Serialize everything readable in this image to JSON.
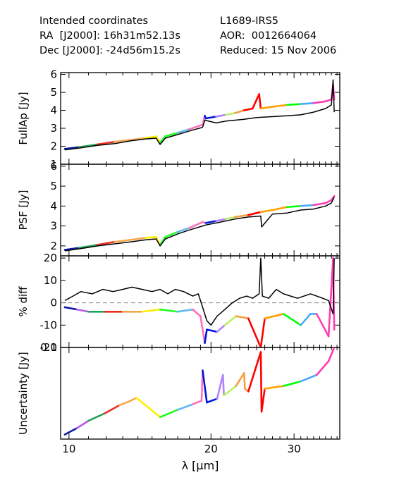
{
  "header": {
    "left": [
      "Intended coordinates",
      "RA  [J2000]: 16h31m52.13s",
      "Dec [J2000]: -24d56m15.2s"
    ],
    "right": [
      "L1689-IRS5",
      "AOR:  0012664064",
      "Reduced: 15 Nov 2006"
    ]
  },
  "chart_data": {
    "type": "line",
    "x_axis": {
      "label": "λ [μm]",
      "scale": "log",
      "range": [
        9.6,
        37.5
      ],
      "ticks": [
        10,
        20,
        30
      ],
      "tick_labels": [
        "10",
        "20",
        "30"
      ]
    },
    "segment_colors": [
      "#0d1aa6",
      "#b25ce8",
      "#22a35a",
      "#e83020",
      "#f5a74d",
      "#ffee00",
      "#20ff20",
      "#60b8f0",
      "#ff70b8",
      "#0018e0",
      "#b080ff",
      "#b8f060",
      "#f59e3f",
      "#ff0000",
      "#ffa000",
      "#00ff00",
      "#4aa8ff",
      "#ff3cb4"
    ],
    "segment_breaks": [
      9.8,
      10.4,
      11.0,
      11.9,
      13.0,
      14.3,
      15.6,
      17.0,
      18.3,
      19.4,
      20.6,
      21.4,
      22.6,
      24.0,
      26.0,
      28.5,
      31.0,
      33.5,
      36.5
    ],
    "panels": [
      {
        "ylabel": "FullAp [Jy]",
        "ylim": [
          1,
          6.1
        ],
        "ytick_values": [
          1,
          2,
          3,
          4,
          5,
          6
        ],
        "ytick_labels": [
          "1",
          "2",
          "3",
          "4",
          "5",
          "6"
        ],
        "zero_line": false,
        "series": [
          {
            "name": "",
            "style": "colored",
            "x": [
              9.8,
              10.5,
              11.5,
              12.5,
              13.5,
              14.5,
              15.3,
              15.6,
              16.0,
              17.0,
              18.0,
              19.2,
              19.4,
              19.5,
              20.5,
              21.5,
              22.5,
              23.5,
              24.5,
              25.3,
              25.5,
              27.0,
              29.0,
              31.0,
              33.0,
              35.0,
              36.0,
              36.3,
              36.5
            ],
            "y": [
              1.85,
              1.95,
              2.1,
              2.25,
              2.35,
              2.45,
              2.55,
              2.2,
              2.55,
              2.75,
              2.95,
              3.2,
              3.7,
              3.55,
              3.65,
              3.75,
              3.85,
              4.0,
              4.1,
              4.9,
              4.1,
              4.2,
              4.3,
              4.35,
              4.4,
              4.5,
              4.6,
              5.4,
              4.6
            ]
          },
          {
            "name": "",
            "style": "black",
            "x": [
              9.8,
              10.5,
              11.5,
              12.5,
              13.5,
              14.5,
              15.3,
              15.6,
              16.0,
              17.0,
              18.0,
              19.2,
              19.4,
              20.5,
              21.5,
              22.5,
              23.5,
              25.0,
              27.0,
              29.0,
              31.0,
              33.0,
              35.0,
              36.0,
              36.3,
              36.5
            ],
            "y": [
              1.8,
              1.9,
              2.05,
              2.15,
              2.3,
              2.4,
              2.45,
              2.1,
              2.45,
              2.65,
              2.85,
              3.05,
              3.45,
              3.3,
              3.4,
              3.45,
              3.5,
              3.6,
              3.65,
              3.7,
              3.75,
              3.9,
              4.1,
              4.3,
              5.7,
              3.9
            ]
          }
        ]
      },
      {
        "ylabel": "PSF [Jy]",
        "ylim": [
          1.5,
          6.1
        ],
        "ytick_values": [
          2,
          3,
          4,
          5,
          6
        ],
        "ytick_labels": [
          "2",
          "3",
          "4",
          "5",
          "6"
        ],
        "zero_line": false,
        "series": [
          {
            "name": "",
            "style": "colored",
            "x": [
              9.8,
              10.5,
              11.5,
              12.5,
              13.5,
              14.5,
              15.3,
              15.6,
              16.0,
              17.0,
              18.0,
              19.2,
              19.5,
              20.5,
              21.5,
              22.5,
              24.0,
              25.5,
              27.0,
              29.0,
              31.0,
              33.0,
              35.0,
              36.0,
              36.5
            ],
            "y": [
              1.8,
              1.9,
              2.05,
              2.2,
              2.3,
              2.4,
              2.45,
              2.05,
              2.45,
              2.7,
              2.9,
              3.2,
              3.15,
              3.25,
              3.35,
              3.45,
              3.55,
              3.7,
              3.8,
              3.95,
              4.0,
              4.05,
              4.15,
              4.3,
              4.5
            ]
          },
          {
            "name": "",
            "style": "black",
            "x": [
              9.8,
              10.5,
              11.5,
              12.5,
              13.5,
              14.5,
              15.3,
              15.6,
              16.0,
              17.0,
              18.0,
              19.2,
              19.5,
              20.5,
              21.5,
              22.5,
              24.0,
              25.5,
              25.6,
              27.0,
              29.0,
              31.0,
              33.0,
              35.0,
              36.0,
              36.5
            ],
            "y": [
              1.75,
              1.85,
              2.0,
              2.1,
              2.2,
              2.3,
              2.35,
              2.0,
              2.35,
              2.6,
              2.8,
              3.0,
              3.05,
              3.15,
              3.25,
              3.35,
              3.45,
              3.5,
              2.95,
              3.6,
              3.65,
              3.8,
              3.85,
              4.0,
              4.15,
              4.45
            ]
          }
        ]
      },
      {
        "ylabel": "% diff",
        "ylim": [
          -20,
          21
        ],
        "ytick_values": [
          -20,
          -10,
          0,
          10,
          20
        ],
        "ytick_labels": [
          "-20",
          "-10",
          "0",
          "10",
          "20"
        ],
        "zero_line": true,
        "series": [
          {
            "name": "",
            "style": "colored",
            "x": [
              9.8,
              10.4,
              11.0,
              11.9,
              13.0,
              14.3,
              15.6,
              17.0,
              18.3,
              19.0,
              19.4,
              19.6,
              20.6,
              21.4,
              22.6,
              24.0,
              25.5,
              26.0,
              28.5,
              31.0,
              32.5,
              33.5,
              35.5,
              36.3,
              36.5
            ],
            "y": [
              -2,
              -3,
              -4,
              -4,
              -4,
              -4,
              -3,
              -4,
              -3,
              -6,
              -18,
              -12,
              -13,
              -10,
              -6,
              -7,
              -20,
              -7,
              -5,
              -10,
              -5,
              -5,
              -15,
              20,
              -12
            ]
          },
          {
            "name": "",
            "style": "black",
            "x": [
              9.8,
              10.2,
              10.6,
              11.2,
              11.8,
              12.4,
              13.0,
              13.6,
              14.3,
              15.0,
              15.6,
              16.2,
              16.8,
              17.5,
              18.3,
              18.8,
              19.2,
              19.6,
              20.0,
              20.6,
              21.4,
              22.2,
              23.0,
              23.8,
              24.5,
              25.3,
              25.5,
              25.7,
              26.5,
              27.5,
              28.5,
              29.5,
              30.5,
              31.5,
              32.5,
              33.5,
              34.5,
              35.5,
              36.3,
              36.5
            ],
            "y": [
              1,
              3,
              5,
              4,
              6,
              5,
              6,
              7,
              6,
              5,
              6,
              4,
              6,
              5,
              3,
              4,
              -2,
              -8,
              -10,
              -6,
              -3,
              0,
              2,
              3,
              2,
              4,
              20,
              3,
              2,
              6,
              4,
              3,
              2,
              3,
              4,
              3,
              2,
              1,
              -5,
              20
            ]
          }
        ]
      },
      {
        "ylabel": "Uncertainty [Jy]",
        "ylim": [
          0,
          0.1
        ],
        "ytick_values": [
          0.1
        ],
        "ytick_labels": [
          "0.1"
        ],
        "zero_line": false,
        "series": [
          {
            "name": "",
            "style": "colored",
            "x": [
              9.8,
              10.4,
              11.0,
              11.9,
              12.8,
              13.4,
              13.9,
              15.6,
              17.0,
              18.3,
              19.1,
              19.2,
              19.6,
              20.6,
              21.2,
              21.3,
              21.6,
              22.6,
              23.5,
              23.6,
              24.0,
              25.5,
              25.6,
              26.0,
              28.5,
              31.0,
              33.5,
              35.5,
              36.5
            ],
            "y": [
              0.005,
              0.012,
              0.02,
              0.028,
              0.037,
              0.041,
              0.045,
              0.024,
              0.032,
              0.038,
              0.042,
              0.075,
              0.04,
              0.044,
              0.07,
              0.048,
              0.05,
              0.058,
              0.072,
              0.055,
              0.052,
              0.095,
              0.03,
              0.055,
              0.058,
              0.063,
              0.07,
              0.085,
              0.1
            ]
          }
        ]
      }
    ]
  }
}
